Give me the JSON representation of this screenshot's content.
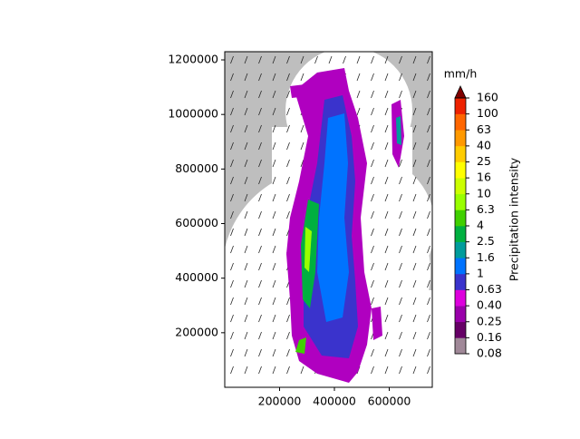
{
  "chart_data": {
    "type": "map",
    "xlim": [
      0,
      757000
    ],
    "ylim": [
      0,
      1230000
    ],
    "xticks": [
      200000,
      400000,
      600000
    ],
    "yticks": [
      200000,
      400000,
      600000,
      800000,
      1000000,
      1200000
    ],
    "colorbar": {
      "title": "mm/h",
      "label": "Precipitation intensity",
      "levels": [
        0.08,
        0.16,
        0.25,
        {
          "value": 0.4,
          "label": "0.40"
        },
        0.63,
        1,
        1.6,
        2.5,
        4,
        6.3,
        10,
        16,
        25,
        40,
        63,
        100,
        160
      ],
      "colors": [
        "#a08898",
        "#660066",
        "#9900aa",
        "#dd00dd",
        "#3a33cc",
        "#0073ff",
        "#009c9c",
        "#00b040",
        "#40d000",
        "#99ff00",
        "#ccff00",
        "#ffff00",
        "#ffcc00",
        "#ff9900",
        "#ff6600",
        "#ee2200"
      ],
      "over_color": "#800000"
    }
  }
}
